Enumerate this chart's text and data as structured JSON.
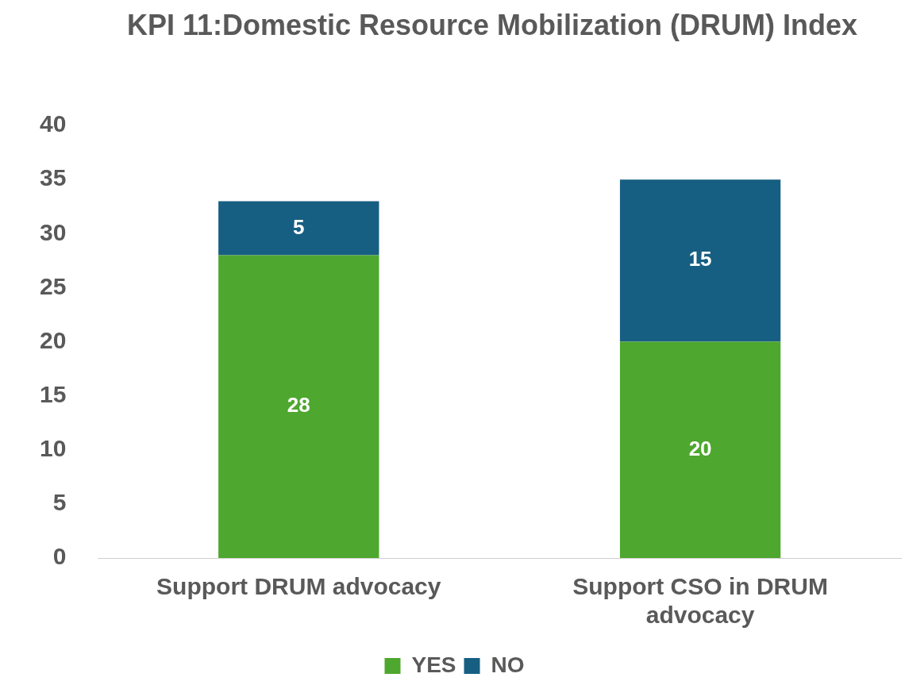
{
  "chart_data": {
    "type": "bar",
    "title": "KPI 11:Domestic Resource Mobilization (DRUM) Index",
    "categories": [
      "Support DRUM advocacy",
      "Support CSO in DRUM advocacy"
    ],
    "stacked": true,
    "series": [
      {
        "name": "YES",
        "color": "#4ea72e",
        "values": [
          28,
          20
        ]
      },
      {
        "name": "NO",
        "color": "#175f82",
        "values": [
          5,
          15
        ]
      }
    ],
    "ylim": [
      0,
      40
    ],
    "yticks": [
      0,
      5,
      10,
      15,
      20,
      25,
      30,
      35,
      40
    ],
    "grid": false,
    "legend": "bottom",
    "data_labels": true
  }
}
